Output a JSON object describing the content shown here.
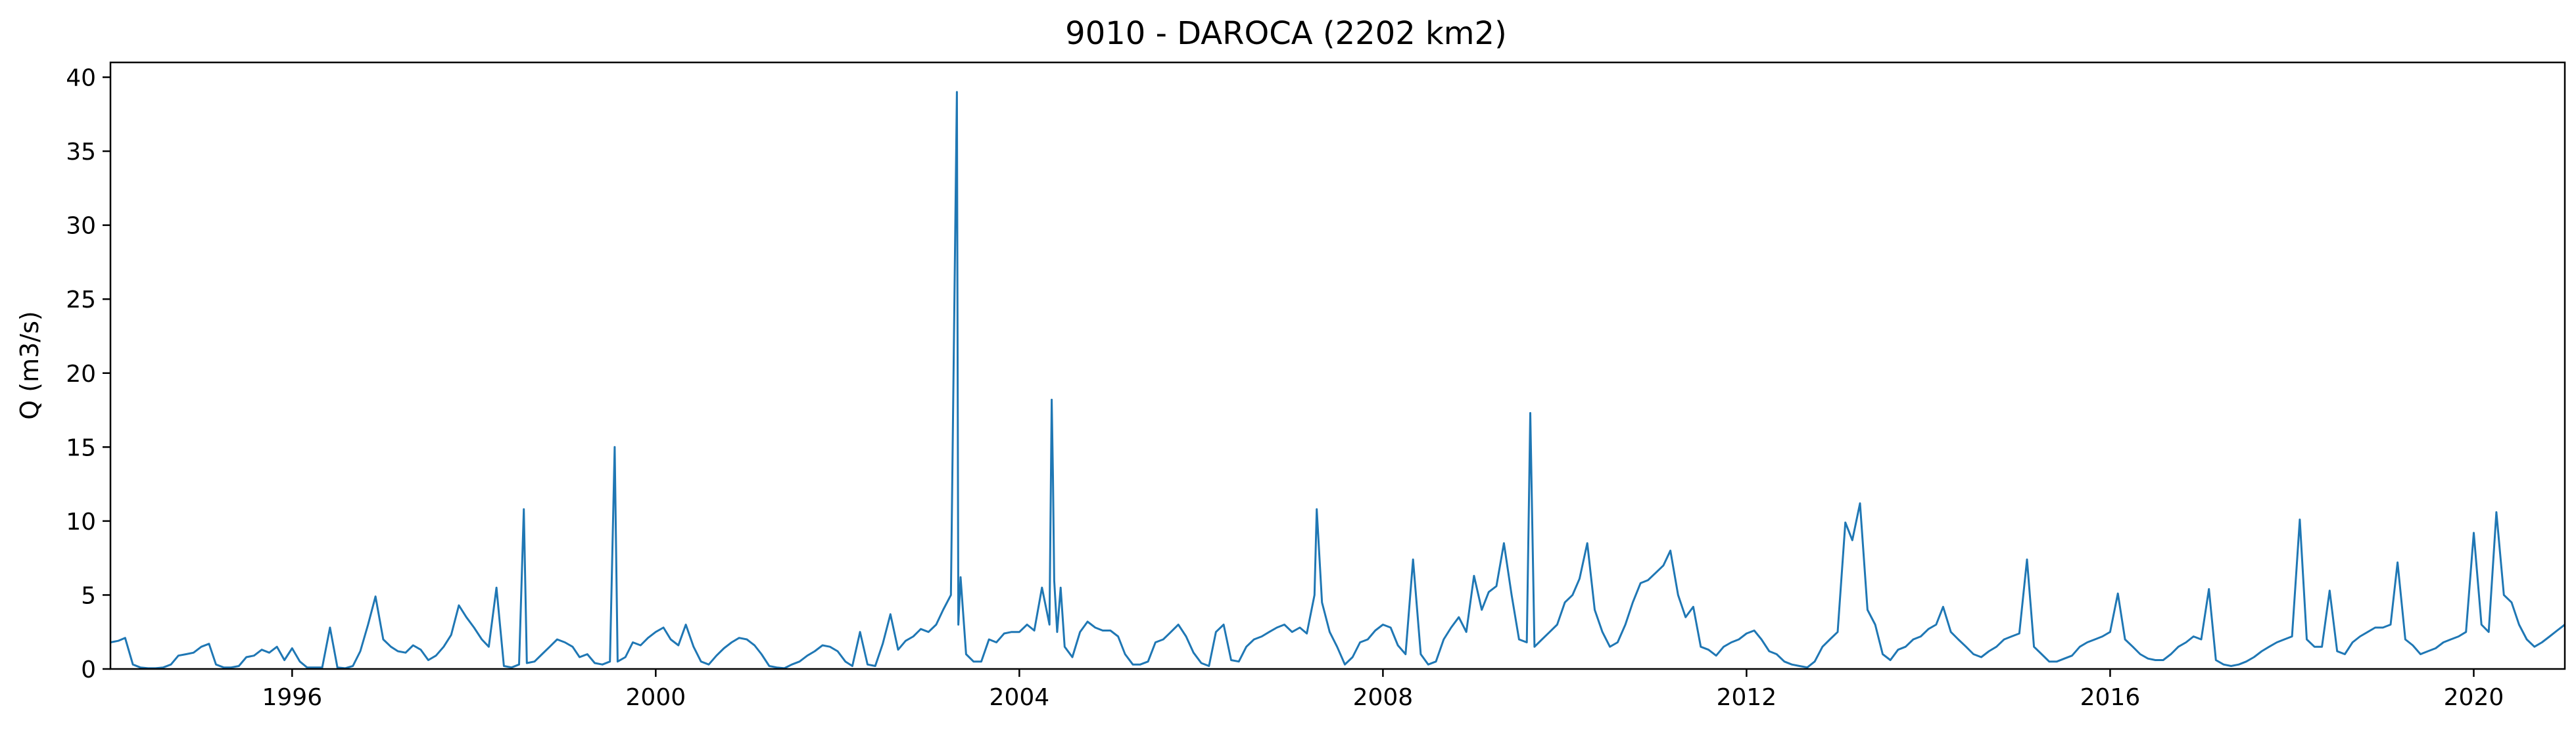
{
  "chart_data": {
    "type": "line",
    "title": "9010 - DAROCA (2202 km2)",
    "xlabel": "",
    "ylabel": "Q (m3/s)",
    "xlim": [
      "1994-01-01",
      "2021-01-01"
    ],
    "ylim": [
      0,
      41
    ],
    "xticks": [
      "1996",
      "2000",
      "2004",
      "2008",
      "2012",
      "2016",
      "2020"
    ],
    "yticks": [
      0,
      5,
      10,
      15,
      20,
      25,
      30,
      35,
      40
    ],
    "grid": false,
    "line_color": "#1f77b4",
    "series": [
      {
        "x": [
          "1994-01-01",
          "1994-02-01",
          "1994-03-01",
          "1994-04-01",
          "1994-05-01",
          "1994-06-01",
          "1994-07-01",
          "1994-08-01",
          "1994-09-01",
          "1994-10-01",
          "1994-11-01",
          "1994-12-01",
          "1995-01-01",
          "1995-02-01",
          "1995-03-01",
          "1995-04-01",
          "1995-05-01",
          "1995-06-01",
          "1995-07-01",
          "1995-08-01",
          "1995-09-01",
          "1995-10-01",
          "1995-11-01",
          "1995-12-01",
          "1996-01-01",
          "1996-02-01",
          "1996-03-01",
          "1996-04-01",
          "1996-05-01",
          "1996-06-01",
          "1996-07-01",
          "1996-08-01",
          "1996-09-01",
          "1996-10-01",
          "1996-11-01",
          "1996-12-01",
          "1997-01-01",
          "1997-02-01",
          "1997-03-01",
          "1997-04-01",
          "1997-05-01",
          "1997-06-01",
          "1997-07-01",
          "1997-08-01",
          "1997-09-01",
          "1997-10-01",
          "1997-11-01",
          "1997-12-01",
          "1998-01-01",
          "1998-02-01",
          "1998-03-01",
          "1998-04-01",
          "1998-05-01",
          "1998-06-01",
          "1998-07-01",
          "1998-07-20",
          "1998-08-01",
          "1998-09-01",
          "1998-10-01",
          "1998-11-01",
          "1998-12-01",
          "1999-01-01",
          "1999-02-01",
          "1999-03-01",
          "1999-04-01",
          "1999-05-01",
          "1999-06-01",
          "1999-07-01",
          "1999-07-20",
          "1999-08-01",
          "1999-09-01",
          "1999-10-01",
          "1999-11-01",
          "1999-12-01",
          "2000-01-01",
          "2000-02-01",
          "2000-03-01",
          "2000-04-01",
          "2000-05-01",
          "2000-06-01",
          "2000-07-01",
          "2000-08-01",
          "2000-09-01",
          "2000-10-01",
          "2000-11-01",
          "2000-12-01",
          "2001-01-01",
          "2001-02-01",
          "2001-03-01",
          "2001-04-01",
          "2001-05-01",
          "2001-06-01",
          "2001-07-01",
          "2001-08-01",
          "2001-09-01",
          "2001-10-01",
          "2001-11-01",
          "2001-12-01",
          "2002-01-01",
          "2002-02-01",
          "2002-03-01",
          "2002-04-01",
          "2002-05-01",
          "2002-06-01",
          "2002-07-01",
          "2002-08-01",
          "2002-09-01",
          "2002-10-01",
          "2002-11-01",
          "2002-12-01",
          "2003-01-01",
          "2003-02-01",
          "2003-03-01",
          "2003-04-01",
          "2003-04-25",
          "2003-05-01",
          "2003-05-10",
          "2003-06-01",
          "2003-07-01",
          "2003-08-01",
          "2003-09-01",
          "2003-10-01",
          "2003-11-01",
          "2003-12-01",
          "2004-01-01",
          "2004-02-01",
          "2004-03-01",
          "2004-04-01",
          "2004-05-01",
          "2004-05-10",
          "2004-05-15",
          "2004-05-20",
          "2004-06-01",
          "2004-06-15",
          "2004-07-01",
          "2004-08-01",
          "2004-09-01",
          "2004-10-01",
          "2004-11-01",
          "2004-12-01",
          "2005-01-01",
          "2005-02-01",
          "2005-03-01",
          "2005-04-01",
          "2005-05-01",
          "2005-06-01",
          "2005-07-01",
          "2005-08-01",
          "2005-09-01",
          "2005-10-01",
          "2005-11-01",
          "2005-12-01",
          "2006-01-01",
          "2006-02-01",
          "2006-03-01",
          "2006-04-01",
          "2006-05-01",
          "2006-06-01",
          "2006-07-01",
          "2006-08-01",
          "2006-09-01",
          "2006-10-01",
          "2006-11-01",
          "2006-12-01",
          "2007-01-01",
          "2007-02-01",
          "2007-03-01",
          "2007-04-01",
          "2007-04-10",
          "2007-05-01",
          "2007-06-01",
          "2007-07-01",
          "2007-08-01",
          "2007-09-01",
          "2007-10-01",
          "2007-11-01",
          "2007-12-01",
          "2008-01-01",
          "2008-02-01",
          "2008-03-01",
          "2008-04-01",
          "2008-05-01",
          "2008-06-01",
          "2008-07-01",
          "2008-08-01",
          "2008-09-01",
          "2008-10-01",
          "2008-11-01",
          "2008-12-01",
          "2009-01-01",
          "2009-02-01",
          "2009-03-01",
          "2009-04-01",
          "2009-05-01",
          "2009-06-01",
          "2009-07-01",
          "2009-08-01",
          "2009-08-15",
          "2009-09-01",
          "2009-10-01",
          "2009-11-01",
          "2009-12-01",
          "2010-01-01",
          "2010-02-01",
          "2010-03-01",
          "2010-04-01",
          "2010-05-01",
          "2010-06-01",
          "2010-07-01",
          "2010-08-01",
          "2010-09-01",
          "2010-10-01",
          "2010-11-01",
          "2010-12-01",
          "2011-01-01",
          "2011-02-01",
          "2011-03-01",
          "2011-04-01",
          "2011-05-01",
          "2011-06-01",
          "2011-07-01",
          "2011-08-01",
          "2011-09-01",
          "2011-10-01",
          "2011-11-01",
          "2011-12-01",
          "2012-01-01",
          "2012-02-01",
          "2012-03-01",
          "2012-04-01",
          "2012-05-01",
          "2012-06-01",
          "2012-07-01",
          "2012-08-01",
          "2012-09-01",
          "2012-10-01",
          "2012-11-01",
          "2012-12-01",
          "2013-01-01",
          "2013-02-01",
          "2013-03-01",
          "2013-04-01",
          "2013-05-01",
          "2013-06-01",
          "2013-07-01",
          "2013-08-01",
          "2013-09-01",
          "2013-10-01",
          "2013-11-01",
          "2013-12-01",
          "2014-01-01",
          "2014-02-01",
          "2014-03-01",
          "2014-04-01",
          "2014-05-01",
          "2014-06-01",
          "2014-07-01",
          "2014-08-01",
          "2014-09-01",
          "2014-10-01",
          "2014-11-01",
          "2014-12-01",
          "2015-01-01",
          "2015-02-01",
          "2015-03-01",
          "2015-04-01",
          "2015-05-01",
          "2015-06-01",
          "2015-07-01",
          "2015-08-01",
          "2015-09-01",
          "2015-10-01",
          "2015-11-01",
          "2015-12-01",
          "2016-01-01",
          "2016-02-01",
          "2016-03-01",
          "2016-04-01",
          "2016-05-01",
          "2016-06-01",
          "2016-07-01",
          "2016-08-01",
          "2016-09-01",
          "2016-10-01",
          "2016-11-01",
          "2016-12-01",
          "2017-01-01",
          "2017-02-01",
          "2017-03-01",
          "2017-04-01",
          "2017-05-01",
          "2017-06-01",
          "2017-07-01",
          "2017-08-01",
          "2017-09-01",
          "2017-10-01",
          "2017-11-01",
          "2017-12-01",
          "2018-01-01",
          "2018-02-01",
          "2018-03-01",
          "2018-04-01",
          "2018-05-01",
          "2018-06-01",
          "2018-07-01",
          "2018-08-01",
          "2018-09-01",
          "2018-10-01",
          "2018-11-01",
          "2018-12-01",
          "2019-01-01",
          "2019-02-01",
          "2019-03-01",
          "2019-04-01",
          "2019-05-01",
          "2019-06-01",
          "2019-07-01",
          "2019-08-01",
          "2019-09-01",
          "2019-10-01",
          "2019-11-01",
          "2019-12-01",
          "2020-01-01",
          "2020-02-01",
          "2020-03-01",
          "2020-04-01",
          "2020-05-01",
          "2020-06-01",
          "2020-07-01",
          "2020-08-01",
          "2020-09-01",
          "2020-10-01",
          "2020-11-01",
          "2020-12-01",
          "2021-01-01"
        ],
        "values": [
          1.8,
          1.9,
          2.1,
          0.3,
          0.1,
          0.05,
          0.05,
          0.1,
          0.3,
          0.9,
          1.0,
          1.1,
          1.5,
          1.7,
          0.3,
          0.1,
          0.1,
          0.2,
          0.8,
          0.9,
          1.3,
          1.1,
          1.5,
          0.6,
          1.4,
          0.5,
          0.1,
          0.1,
          0.1,
          2.8,
          0.1,
          0.05,
          0.2,
          1.2,
          3.0,
          4.9,
          2.0,
          1.5,
          1.2,
          1.1,
          1.6,
          1.3,
          0.6,
          0.9,
          1.5,
          2.3,
          4.3,
          3.5,
          2.8,
          2.0,
          1.5,
          5.5,
          0.2,
          0.1,
          0.3,
          10.8,
          0.4,
          0.5,
          1.0,
          1.5,
          2.0,
          1.8,
          1.5,
          0.8,
          1.0,
          0.4,
          0.3,
          0.5,
          15.0,
          0.5,
          0.8,
          1.8,
          1.6,
          2.1,
          2.5,
          2.8,
          2.0,
          1.6,
          3.0,
          1.5,
          0.5,
          0.3,
          0.9,
          1.4,
          1.8,
          2.1,
          2.0,
          1.6,
          1.0,
          0.2,
          0.1,
          0.05,
          0.3,
          0.5,
          0.9,
          1.2,
          1.6,
          1.5,
          1.2,
          0.5,
          0.2,
          2.5,
          0.3,
          0.2,
          1.7,
          3.7,
          1.3,
          1.9,
          2.2,
          2.7,
          2.5,
          3.0,
          4.0,
          5.0,
          39.0,
          3.0,
          6.2,
          1.0,
          0.5,
          0.5,
          2.0,
          1.8,
          2.4,
          2.5,
          2.5,
          3.0,
          2.6,
          5.5,
          3.0,
          18.2,
          13.0,
          6.0,
          2.5,
          5.5,
          1.5,
          0.8,
          2.5,
          3.2,
          2.8,
          2.6,
          2.6,
          2.2,
          1.0,
          0.3,
          0.3,
          0.5,
          1.8,
          2.0,
          2.5,
          3.0,
          2.2,
          1.1,
          0.4,
          0.2,
          2.5,
          3.0,
          0.6,
          0.5,
          1.5,
          2.0,
          2.2,
          2.5,
          2.8,
          3.0,
          2.5,
          2.8,
          2.4,
          5.0,
          10.8,
          4.5,
          2.5,
          1.5,
          0.3,
          0.8,
          1.8,
          2.0,
          2.6,
          3.0,
          2.8,
          1.6,
          1.0,
          7.4,
          1.0,
          0.3,
          0.5,
          2.0,
          2.8,
          3.5,
          2.5,
          6.3,
          4.0,
          5.2,
          5.6,
          8.5,
          5.0,
          2.0,
          1.8,
          17.3,
          1.5,
          2.0,
          2.5,
          3.0,
          4.5,
          5.0,
          6.1,
          8.5,
          4.0,
          2.5,
          1.5,
          1.8,
          3.0,
          4.5,
          5.8,
          6.0,
          6.5,
          7.0,
          8.0,
          5.0,
          3.5,
          4.2,
          1.5,
          1.3,
          0.9,
          1.5,
          1.8,
          2.0,
          2.4,
          2.6,
          2.0,
          1.2,
          1.0,
          0.5,
          0.3,
          0.2,
          0.1,
          0.5,
          1.5,
          2.0,
          2.5,
          9.9,
          8.7,
          11.2,
          4.0,
          3.0,
          1.0,
          0.6,
          1.3,
          1.5,
          2.0,
          2.2,
          2.7,
          3.0,
          4.2,
          2.5,
          2.0,
          1.5,
          1.0,
          0.8,
          1.2,
          1.5,
          2.0,
          2.2,
          2.4,
          7.4,
          1.5,
          1.0,
          0.5,
          0.5,
          0.7,
          0.9,
          1.5,
          1.8,
          2.0,
          2.2,
          2.5,
          5.1,
          2.0,
          1.5,
          1.0,
          0.7,
          0.6,
          0.6,
          1.0,
          1.5,
          1.8,
          2.2,
          2.0,
          5.4,
          0.6,
          0.3,
          0.2,
          0.3,
          0.5,
          0.8,
          1.2,
          1.5,
          1.8,
          2.0,
          2.2,
          10.1,
          2.0,
          1.5,
          1.5,
          5.3,
          1.2,
          1.0,
          1.8,
          2.2,
          2.5,
          2.8,
          2.8,
          3.0,
          7.2,
          2.0,
          1.6,
          1.0,
          1.2,
          1.4,
          1.8,
          2.0,
          2.2,
          2.5,
          9.2,
          3.0,
          2.5,
          10.6,
          5.0,
          4.5,
          3.0,
          2.0,
          1.5,
          1.8,
          2.2,
          2.6,
          3.0
        ]
      }
    ]
  }
}
